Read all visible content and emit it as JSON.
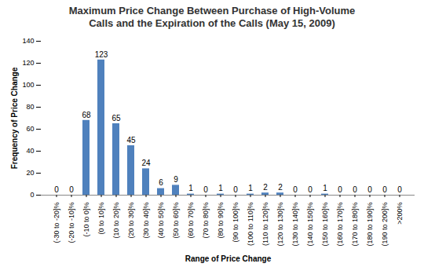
{
  "chart_data": {
    "type": "bar",
    "title": "Maximum Price Change Between Purchase of High-Volume Calls and the Expiration of the Calls (May 15, 2009)",
    "x_label": "Range of Price Change",
    "y_label": "Frequency of Price Change",
    "categories": [
      "(-30 to -20]%",
      "(-20 to -10]%",
      "(-10 to 0]%",
      "(0 to 10]%",
      "(10 to 20]%",
      "(20 to 30]%",
      "(30 to 40]%",
      "(40 to 50]%",
      "(50 to 60]%",
      "(60 to 70]%",
      "(70 to 80]%",
      "(80 to 90]%",
      "(90 to 100]%",
      "(100 to 110]%",
      "(110 to 120]%",
      "(120 to 130]%",
      "(130 to 140]%",
      "(140 to 150]%",
      "(150 to 160]%",
      "(160 to 170]%",
      "(170 to 180]%",
      "(180 to 190]%",
      "(190 to 200]%",
      ">200%"
    ],
    "values": [
      0,
      0,
      68,
      123,
      65,
      45,
      24,
      6,
      9,
      1,
      0,
      1,
      0,
      1,
      2,
      2,
      0,
      0,
      1,
      0,
      0,
      0,
      0,
      0
    ],
    "color": "#4f81bd",
    "ylim": [
      0,
      140
    ],
    "yticks": [
      0,
      20,
      40,
      60,
      80,
      100,
      120,
      140
    ],
    "grid": false,
    "data_labels": true
  }
}
